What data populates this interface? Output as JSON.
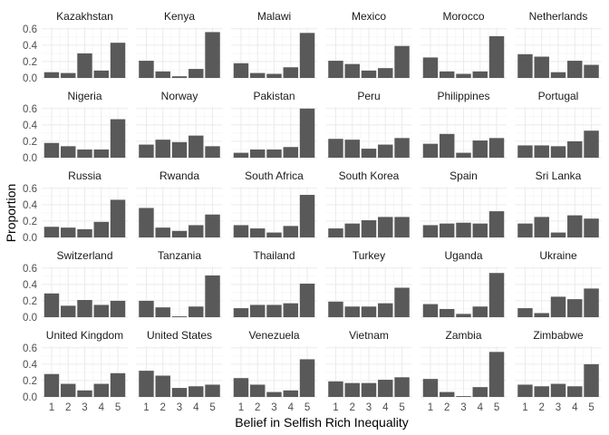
{
  "chart_data": {
    "type": "bar",
    "xlabel": "Belief in Selfish Rich Inequality",
    "ylabel": "Proportion",
    "categories": [
      "1",
      "2",
      "3",
      "4",
      "5"
    ],
    "ylim": [
      0,
      0.62
    ],
    "yticks": [
      0.0,
      0.2,
      0.4,
      0.6
    ],
    "ytick_labels": [
      "0.0",
      "0.2",
      "0.4",
      "0.6"
    ],
    "grid": true,
    "bar_color": "#595959",
    "facet_columns": 6,
    "panels": [
      {
        "name": "Kazakhstan",
        "values": [
          0.07,
          0.06,
          0.3,
          0.09,
          0.43
        ]
      },
      {
        "name": "Kenya",
        "values": [
          0.21,
          0.08,
          0.02,
          0.11,
          0.56
        ]
      },
      {
        "name": "Malawi",
        "values": [
          0.18,
          0.06,
          0.05,
          0.13,
          0.55
        ]
      },
      {
        "name": "Mexico",
        "values": [
          0.21,
          0.17,
          0.09,
          0.12,
          0.39
        ]
      },
      {
        "name": "Morocco",
        "values": [
          0.25,
          0.08,
          0.05,
          0.08,
          0.51
        ]
      },
      {
        "name": "Netherlands",
        "values": [
          0.29,
          0.26,
          0.07,
          0.21,
          0.16
        ]
      },
      {
        "name": "Nigeria",
        "values": [
          0.18,
          0.14,
          0.1,
          0.1,
          0.47
        ]
      },
      {
        "name": "Norway",
        "values": [
          0.16,
          0.22,
          0.19,
          0.27,
          0.14
        ]
      },
      {
        "name": "Pakistan",
        "values": [
          0.06,
          0.1,
          0.1,
          0.13,
          0.6
        ]
      },
      {
        "name": "Peru",
        "values": [
          0.23,
          0.22,
          0.11,
          0.16,
          0.24
        ]
      },
      {
        "name": "Philippines",
        "values": [
          0.17,
          0.29,
          0.06,
          0.21,
          0.24
        ]
      },
      {
        "name": "Portugal",
        "values": [
          0.15,
          0.15,
          0.14,
          0.2,
          0.33
        ]
      },
      {
        "name": "Russia",
        "values": [
          0.13,
          0.12,
          0.1,
          0.19,
          0.46
        ]
      },
      {
        "name": "Rwanda",
        "values": [
          0.36,
          0.12,
          0.08,
          0.15,
          0.28
        ]
      },
      {
        "name": "South Africa",
        "values": [
          0.15,
          0.11,
          0.06,
          0.14,
          0.52
        ]
      },
      {
        "name": "South Korea",
        "values": [
          0.11,
          0.17,
          0.21,
          0.25,
          0.25
        ]
      },
      {
        "name": "Spain",
        "values": [
          0.15,
          0.17,
          0.18,
          0.17,
          0.32
        ]
      },
      {
        "name": "Sri Lanka",
        "values": [
          0.17,
          0.25,
          0.06,
          0.27,
          0.23
        ]
      },
      {
        "name": "Switzerland",
        "values": [
          0.29,
          0.14,
          0.21,
          0.15,
          0.2
        ]
      },
      {
        "name": "Tanzania",
        "values": [
          0.2,
          0.12,
          0.01,
          0.13,
          0.51
        ]
      },
      {
        "name": "Thailand",
        "values": [
          0.11,
          0.15,
          0.15,
          0.17,
          0.41
        ]
      },
      {
        "name": "Turkey",
        "values": [
          0.19,
          0.13,
          0.13,
          0.17,
          0.36
        ]
      },
      {
        "name": "Uganda",
        "values": [
          0.16,
          0.1,
          0.04,
          0.13,
          0.54
        ]
      },
      {
        "name": "Ukraine",
        "values": [
          0.11,
          0.05,
          0.25,
          0.22,
          0.35
        ]
      },
      {
        "name": "United Kingdom",
        "values": [
          0.28,
          0.16,
          0.08,
          0.16,
          0.29
        ]
      },
      {
        "name": "United States",
        "values": [
          0.32,
          0.26,
          0.11,
          0.13,
          0.15
        ]
      },
      {
        "name": "Venezuela",
        "values": [
          0.23,
          0.15,
          0.06,
          0.08,
          0.46
        ]
      },
      {
        "name": "Vietnam",
        "values": [
          0.19,
          0.17,
          0.17,
          0.21,
          0.24
        ]
      },
      {
        "name": "Zambia",
        "values": [
          0.22,
          0.06,
          0.01,
          0.12,
          0.55
        ]
      },
      {
        "name": "Zimbabwe",
        "values": [
          0.15,
          0.13,
          0.16,
          0.13,
          0.4
        ]
      }
    ]
  }
}
